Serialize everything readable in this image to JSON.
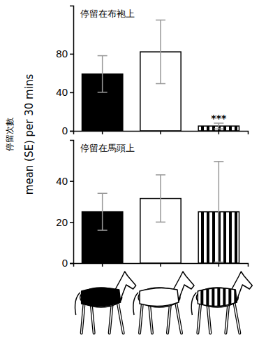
{
  "chart_data": [
    {
      "type": "bar",
      "title": "停留在布袍上",
      "categories": [
        null,
        null,
        null
      ],
      "values": [
        59,
        82,
        5
      ],
      "errors": [
        19,
        33,
        3
      ],
      "colors": [
        "#000000",
        "#ffffff",
        "#000000"
      ],
      "ylim": [
        0,
        130
      ],
      "yticks": [
        0,
        40,
        80
      ],
      "y_label": [
        "停留次數",
        "mean (SE) per 30 mins"
      ],
      "annotations": [
        {
          "index": 2,
          "text": "***"
        }
      ]
    },
    {
      "type": "bar",
      "title": "停留在馬頭上",
      "categories": [
        null,
        null,
        null
      ],
      "values": [
        25,
        31.5,
        25
      ],
      "errors": [
        9,
        11.5,
        24.5
      ],
      "colors": [
        "#000000",
        "#ffffff",
        "#000000"
      ],
      "ylim": [
        0,
        60
      ],
      "yticks": [
        0,
        20,
        40
      ]
    }
  ]
}
